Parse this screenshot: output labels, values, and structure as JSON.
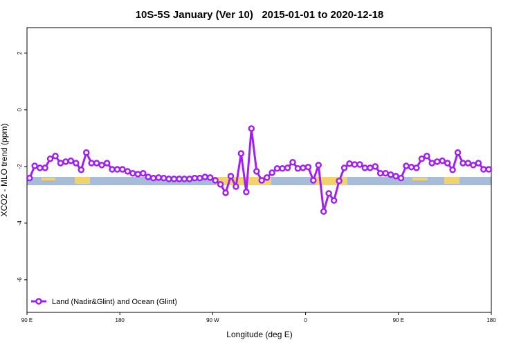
{
  "chart_data": {
    "type": "line",
    "title": "10S-5S January (Ver 10)   2015-01-01 to 2020-12-18",
    "x_label": "Longitude (deg E)",
    "y_label": "XCO2 - MLO trend (ppm)",
    "xlim": [
      90,
      540
    ],
    "ylim": [
      -7.15,
      2.9
    ],
    "xticks": [
      {
        "value": 90,
        "label": "90 E"
      },
      180,
      {
        "value": 270,
        "label": "90 W"
      },
      {
        "value": 360,
        "label": "0"
      },
      {
        "value": 450,
        "label": "90 E"
      },
      {
        "value": 540,
        "label": "180"
      }
    ],
    "yticks": [
      2,
      0,
      -2,
      -4,
      -6
    ],
    "legend": "bottom-left",
    "x": [
      92.5,
      97.5,
      102.5,
      107.5,
      112.5,
      117.5,
      122.5,
      127.5,
      132.5,
      137.5,
      142.5,
      147.5,
      152.5,
      157.5,
      162.5,
      167.5,
      172.5,
      177.5,
      182.5,
      187.5,
      192.5,
      197.5,
      202.5,
      207.5,
      212.5,
      217.5,
      222.5,
      227.5,
      232.5,
      237.5,
      242.5,
      247.5,
      252.5,
      257.5,
      262.5,
      267.5,
      272.5,
      277.5,
      282.5,
      287.5,
      292.5,
      297.5,
      302.5,
      307.5,
      312.5,
      317.5,
      322.5,
      327.5,
      332.5,
      337.5,
      342.5,
      347.5,
      352.5,
      357.5,
      362.5,
      367.5,
      372.5,
      377.5,
      382.5,
      387.5,
      392.5,
      397.5,
      402.5,
      407.5,
      412.5,
      417.5,
      422.5,
      427.5,
      432.5,
      437.5,
      442.5,
      447.5,
      452.5,
      457.5,
      462.5,
      467.5,
      472.5,
      477.5,
      482.5,
      487.5,
      492.5,
      497.5,
      502.5,
      507.5,
      512.5,
      517.5,
      522.5,
      527.5,
      532.5,
      537.5
    ],
    "series": [
      {
        "name": "Land (Nadir&Glint) and Ocean (Glint)",
        "color": "#a020f0",
        "values": [
          -2.41,
          -1.98,
          -2.05,
          -2.05,
          -1.73,
          -1.63,
          -1.88,
          -1.83,
          -1.8,
          -1.88,
          -2.12,
          -1.51,
          -1.88,
          -1.88,
          -1.95,
          -1.88,
          -2.1,
          -2.1,
          -2.1,
          -2.17,
          -2.24,
          -2.27,
          -2.24,
          -2.37,
          -2.41,
          -2.39,
          -2.41,
          -2.44,
          -2.44,
          -2.44,
          -2.44,
          -2.44,
          -2.41,
          -2.41,
          -2.37,
          -2.39,
          -2.49,
          -2.63,
          -2.93,
          -2.34,
          -2.71,
          -1.54,
          -2.9,
          -0.66,
          -2.17,
          -2.49,
          -2.39,
          -2.22,
          -2.07,
          -2.07,
          -2.05,
          -1.85,
          -2.07,
          -2.05,
          -2.02,
          -2.49,
          -1.95,
          -3.59,
          -2.95,
          -3.2,
          -2.51,
          -2.05,
          -1.9,
          -1.93,
          -1.93,
          -2.05,
          -2.05,
          -2.0,
          -2.24,
          -2.24,
          -2.29,
          -2.34,
          -2.41,
          -1.98,
          -2.02,
          -2.05,
          -1.73,
          -1.63,
          -1.88,
          -1.83,
          -1.8,
          -1.88,
          -2.12,
          -1.51,
          -1.88,
          -1.88,
          -1.95,
          -1.88,
          -2.1,
          -2.1
        ]
      }
    ]
  }
}
